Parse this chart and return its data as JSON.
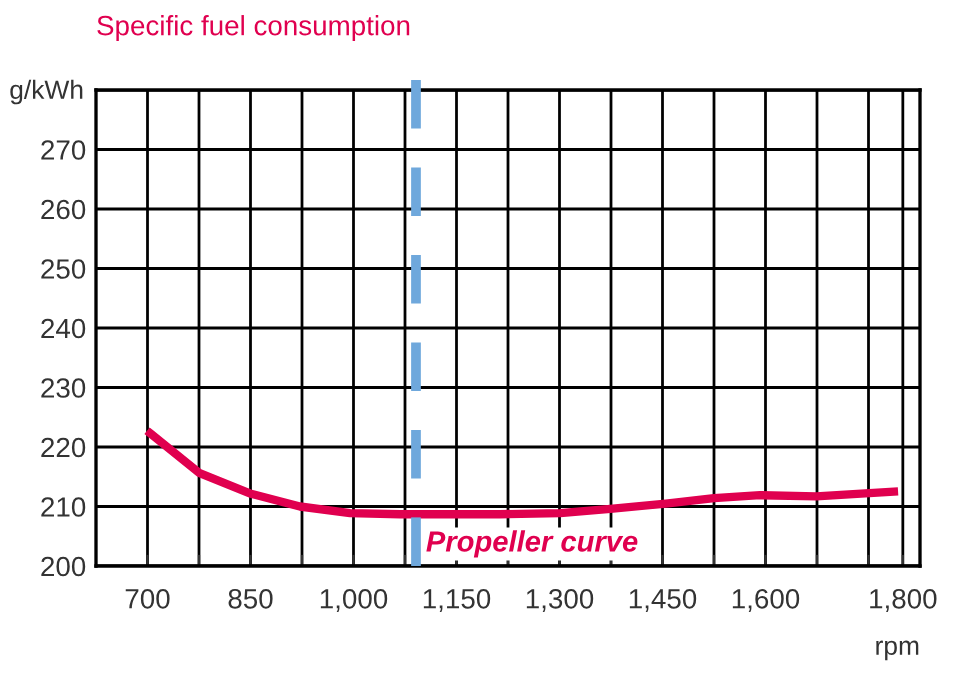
{
  "chart_data": {
    "type": "line",
    "title": "Specific fuel consumption",
    "xlabel": "rpm",
    "ylabel": "g/kWh",
    "series": [
      {
        "color": "#e0004f",
        "x": [
          704,
          776,
          849,
          922,
          995,
          1068,
          1213,
          1301,
          1374,
          1455,
          1525,
          1592,
          1674,
          1787
        ],
        "values": [
          222.3,
          215.6,
          212.2,
          210,
          208.9,
          208.7,
          208.7,
          208.9,
          209.6,
          210.5,
          211.4,
          211.9,
          211.7,
          212.5
        ]
      }
    ],
    "annotations": [
      {
        "text": "Propeller curve",
        "x": 1260,
        "y": 208.8
      }
    ],
    "ref_lines": [
      {
        "axis": "x",
        "value": 1091,
        "color": "#6fa8dc",
        "line_style": "dashed"
      }
    ],
    "xlim": [
      625,
      1825
    ],
    "xticks": [
      700,
      {
        "value": 775,
        "label": null
      },
      {
        "value": 850,
        "label": "850"
      },
      {
        "value": 925,
        "label": null
      },
      {
        "value": 1000,
        "label": "1,000"
      },
      {
        "value": 1075,
        "label": null
      },
      {
        "value": 1150,
        "label": "1,150"
      },
      {
        "value": 1225,
        "label": null
      },
      {
        "value": 1300,
        "label": "1,300"
      },
      {
        "value": 1375,
        "label": null
      },
      {
        "value": 1450,
        "label": "1,450"
      },
      {
        "value": 1525,
        "label": null
      },
      {
        "value": 1600,
        "label": "1,600"
      },
      {
        "value": 1675,
        "label": null
      },
      {
        "value": 1750,
        "label": null
      },
      {
        "value": 1800,
        "label": "1,800"
      }
    ],
    "ylim": [
      200,
      280
    ],
    "yticks": [
      200,
      210,
      220,
      230,
      240,
      250,
      260,
      270,
      {
        "value": 280,
        "label": null
      }
    ],
    "grid": true,
    "marker": "none",
    "line_style": "solid"
  }
}
